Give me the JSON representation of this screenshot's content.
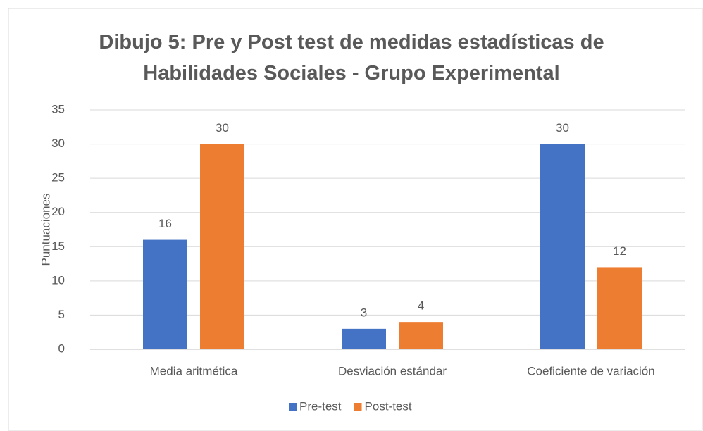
{
  "chart_data": {
    "type": "bar",
    "title": "Dibujo 5: Pre y Post test de medidas estadísticas de Habilidades Sociales - Grupo Experimental",
    "ylabel": "Puntuaciones",
    "categories": [
      "Media aritmética",
      "Desviación estándar",
      "Coeficiente de variación"
    ],
    "series": [
      {
        "name": "Pre-test",
        "color": "#4472c4",
        "values": [
          16,
          3,
          30
        ]
      },
      {
        "name": "Post-test",
        "color": "#ed7d31",
        "values": [
          30,
          4,
          12
        ]
      }
    ],
    "ylim": [
      0,
      35
    ],
    "yticks": [
      0,
      5,
      10,
      15,
      20,
      25,
      30,
      35
    ],
    "grid": true,
    "legend": "bottom"
  }
}
